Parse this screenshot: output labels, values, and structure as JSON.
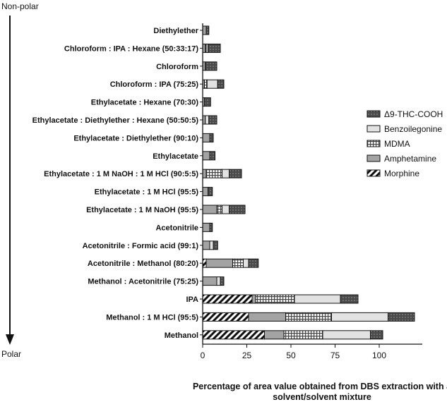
{
  "top_label": "Non-polar",
  "bottom_label": "Polar",
  "chart_data": {
    "type": "bar",
    "orientation": "horizontal",
    "stacked": true,
    "xlabel": "Percentage of area value obtained from DBS extraction with a solvent/solvent mixture",
    "xlabel_lines": [
      "Percentage of area value obtained from DBS extraction with a",
      "solvent/solvent mixture"
    ],
    "xlim": [
      0,
      120
    ],
    "xticks": [
      0,
      25,
      50,
      75,
      100
    ],
    "legend_position": "right",
    "categories": [
      "Diethylether",
      "Chloroform : IPA : Hexane (50:33:17)",
      "Chloroform",
      "Chloroform : IPA (75:25)",
      "Ethylacetate : Hexane (70:30)",
      "Ethylacetate : Diethylether : Hexane (50:50:5)",
      "Ethylacetate : Diethylether (90:10)",
      "Ethylacetate",
      "Ethylacetate : 1 M NaOH : 1 M HCl (90:5:5)",
      "Ethylacetate : 1 M HCl (95:5)",
      "Ethylacetate : 1 M NaOH (95:5)",
      "Acetonitrile",
      "Acetonitrile : Formic acid (99:1)",
      "Acetonitrile : Methanol (80:20)",
      "Methanol : Acetonitrile (75:25)",
      "IPA",
      "Methanol : 1 M HCl (95:5)",
      "Methanol"
    ],
    "series": [
      {
        "name": "Morphine",
        "color": "#ffffff",
        "pattern": "diagonal-hatch",
        "values": [
          0,
          0,
          0,
          0,
          0,
          0,
          0,
          0,
          0,
          0,
          0,
          0,
          0,
          2,
          0,
          28,
          26,
          35
        ]
      },
      {
        "name": "Amphetamine",
        "color": "#a0a0a0",
        "pattern": "solid-gray",
        "values": [
          2,
          1.5,
          1.5,
          1,
          1,
          1.5,
          4,
          4,
          2,
          3,
          8,
          4,
          4,
          15,
          8,
          2,
          21,
          11
        ]
      },
      {
        "name": "MDMA",
        "color": "#ffffff",
        "pattern": "grid",
        "values": [
          0,
          0.5,
          0,
          1.5,
          0,
          0,
          0,
          0,
          9,
          0,
          3,
          0,
          0,
          6,
          0,
          22,
          26,
          22
        ]
      },
      {
        "name": "Benzoilegonine",
        "color": "#e0e0e0",
        "pattern": "light-gray",
        "values": [
          0,
          1,
          0,
          6,
          0,
          2,
          0,
          0,
          4,
          0,
          4,
          0,
          2,
          3,
          2,
          26,
          32,
          27
        ]
      },
      {
        "name": "Δ9-THC-COOH",
        "color": "#5a5a5a",
        "pattern": "dark-dotted",
        "values": [
          1.5,
          7,
          6.5,
          3.5,
          3.5,
          4.5,
          2,
          3,
          7,
          2.5,
          9,
          1.5,
          2.5,
          5.5,
          2,
          10,
          15,
          7
        ]
      }
    ],
    "legend_order": [
      "Δ9-THC-COOH",
      "Benzoilegonine",
      "MDMA",
      "Amphetamine",
      "Morphine"
    ]
  }
}
